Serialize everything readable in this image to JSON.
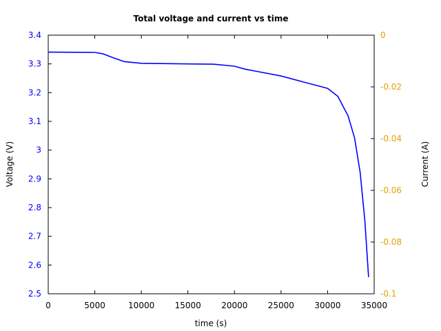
{
  "chart_data": {
    "type": "line",
    "title": "Total voltage and current vs time",
    "xlabel": "time (s)",
    "ylabel": "Voltage (V)",
    "y2label": "Current (A)",
    "xlim": [
      0,
      35000
    ],
    "ylim": [
      2.5,
      3.4
    ],
    "y2lim": [
      -0.1,
      0
    ],
    "grid": false,
    "legend": null,
    "x_ticks": [
      "0",
      "5000",
      "10000",
      "15000",
      "20000",
      "25000",
      "30000",
      "35000"
    ],
    "y_ticks": [
      "2.5",
      "2.6",
      "2.7",
      "2.8",
      "2.9",
      "3",
      "3.1",
      "3.2",
      "3.3",
      "3.4"
    ],
    "y2_ticks": [
      "-0.1",
      "-0.08",
      "-0.06",
      "-0.04",
      "-0.02",
      "0"
    ],
    "colors": {
      "voltage": "#0000ff",
      "left_axis_text": "#0000ff",
      "right_axis_text": "#e69f00"
    },
    "series": [
      {
        "name": "Voltage",
        "axis": "left",
        "x": [
          0,
          5000,
          5900,
          7000,
          8150,
          10000,
          15000,
          17750,
          20000,
          21100,
          22550,
          25000,
          27400,
          30000,
          31100,
          32200,
          32900,
          33500,
          34000,
          34400
        ],
        "values": [
          3.341,
          3.34,
          3.335,
          3.321,
          3.308,
          3.302,
          3.3,
          3.299,
          3.292,
          3.282,
          3.273,
          3.258,
          3.237,
          3.215,
          3.187,
          3.119,
          3.042,
          2.922,
          2.754,
          2.558
        ]
      },
      {
        "name": "Current",
        "axis": "right",
        "x": [],
        "values": []
      }
    ]
  }
}
